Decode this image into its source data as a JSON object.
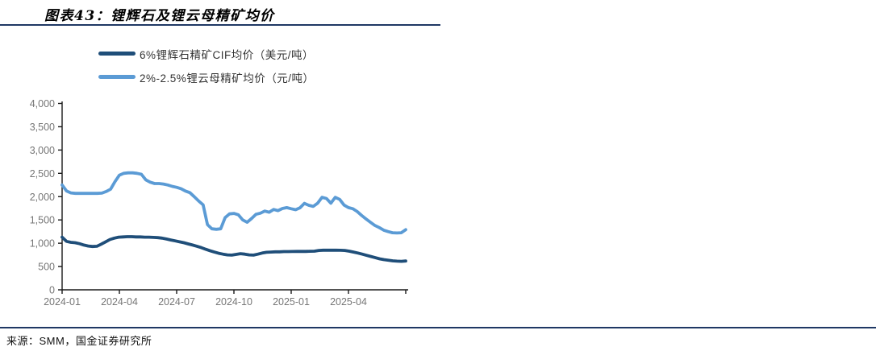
{
  "header": {
    "title": "图表43：锂辉石及锂云母精矿均价"
  },
  "legend": [
    {
      "label": "6%锂辉石精矿CIF均价（美元/吨）",
      "color": "#1F4E79"
    },
    {
      "label": "2%-2.5%锂云母精矿均价（元/吨）",
      "color": "#5B9BD5"
    }
  ],
  "footer": {
    "source": "来源：SMM，国金证券研究所"
  },
  "chart_data": {
    "type": "line",
    "title": "图表43：锂辉石及锂云母精矿均价",
    "x_ticks": [
      "2024-01",
      "2024-04",
      "2024-07",
      "2024-10",
      "2025-01",
      "2025-04"
    ],
    "x_frequency": "weekly",
    "x_range": [
      "2024-01",
      "2025-06"
    ],
    "ylim": [
      0,
      4000
    ],
    "ytick_interval": 500,
    "grid": false,
    "legend_position": "top-left",
    "series": [
      {
        "name": "6%锂辉石精矿CIF均价（美元/吨）",
        "color": "#1F4E79",
        "values": [
          1130,
          1040,
          1020,
          1010,
          990,
          960,
          940,
          930,
          935,
          980,
          1030,
          1080,
          1110,
          1130,
          1135,
          1140,
          1140,
          1135,
          1135,
          1130,
          1130,
          1125,
          1120,
          1110,
          1090,
          1070,
          1050,
          1030,
          1010,
          985,
          960,
          935,
          905,
          870,
          840,
          810,
          785,
          765,
          750,
          745,
          760,
          775,
          765,
          750,
          745,
          765,
          790,
          805,
          810,
          815,
          815,
          820,
          820,
          822,
          825,
          825,
          825,
          828,
          830,
          845,
          850,
          850,
          850,
          850,
          848,
          845,
          830,
          810,
          790,
          765,
          740,
          715,
          690,
          665,
          648,
          635,
          622,
          615,
          612,
          618
        ]
      },
      {
        "name": "2%-2.5%锂云母精矿均价（元/吨）",
        "color": "#5B9BD5",
        "values": [
          2250,
          2120,
          2080,
          2070,
          2070,
          2070,
          2070,
          2070,
          2070,
          2075,
          2110,
          2160,
          2320,
          2460,
          2500,
          2510,
          2510,
          2500,
          2480,
          2360,
          2310,
          2280,
          2280,
          2270,
          2250,
          2220,
          2200,
          2170,
          2120,
          2085,
          2000,
          1905,
          1825,
          1400,
          1310,
          1300,
          1310,
          1550,
          1630,
          1640,
          1610,
          1500,
          1450,
          1530,
          1620,
          1645,
          1690,
          1665,
          1725,
          1700,
          1745,
          1765,
          1740,
          1720,
          1760,
          1855,
          1815,
          1790,
          1860,
          1985,
          1960,
          1860,
          1985,
          1940,
          1820,
          1765,
          1740,
          1680,
          1595,
          1520,
          1450,
          1380,
          1335,
          1280,
          1250,
          1225,
          1220,
          1225,
          1290
        ]
      }
    ]
  }
}
